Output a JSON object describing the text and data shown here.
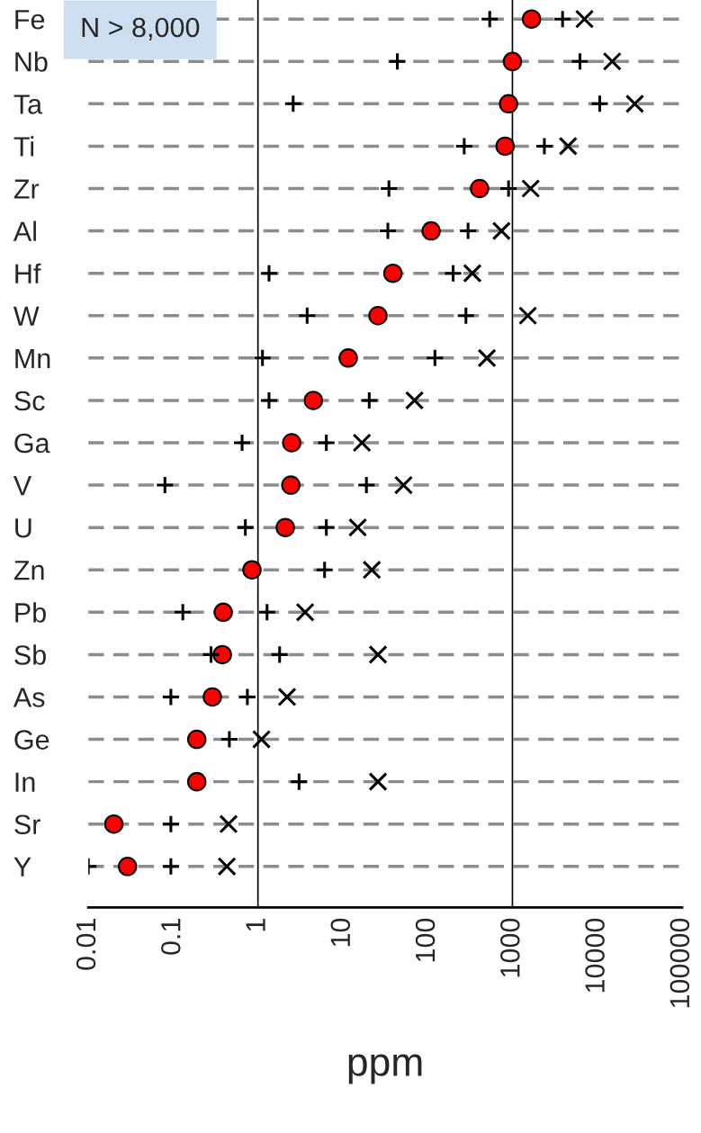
{
  "chart_data": {
    "type": "scatter",
    "orientation": "horizontal",
    "log": "x",
    "xlabel": "ppm",
    "categories": [
      "Fe",
      "Nb",
      "Ta",
      "Ti",
      "Zr",
      "Al",
      "Hf",
      "W",
      "Mn",
      "Sc",
      "Ga",
      "V",
      "U",
      "Zn",
      "Pb",
      "Sb",
      "As",
      "Ge",
      "In",
      "Sr",
      "Y"
    ],
    "series": [
      {
        "color": "#000000",
        "marker": "plus",
        "values": [
          540,
          44,
          2.6,
          270,
          35,
          34,
          1.35,
          3.8,
          1.13,
          1.35,
          0.65,
          0.08,
          0.71,
          null,
          0.13,
          0.28,
          0.094,
          null,
          null,
          null,
          0.01
        ]
      },
      {
        "color": "#ff0000",
        "marker": "circle",
        "values": [
          1680,
          1000,
          900,
          820,
          410,
          110,
          39,
          26,
          11.6,
          4.5,
          2.5,
          2.44,
          2.1,
          0.85,
          0.39,
          0.38,
          0.29,
          0.19,
          0.19,
          0.02,
          0.029
        ]
      },
      {
        "color": "#000000",
        "marker": "plus",
        "values": [
          3900,
          6250,
          10700,
          2380,
          900,
          300,
          200,
          283,
          122,
          20.5,
          6.4,
          19,
          6.4,
          6.1,
          1.28,
          1.8,
          0.75,
          0.46,
          3.05,
          0.094,
          0.094
        ]
      },
      {
        "color": "#000000",
        "marker": "cross",
        "values": [
          7070,
          15000,
          27700,
          4530,
          1640,
          743,
          337,
          1520,
          500,
          70,
          16.8,
          52,
          15,
          22,
          3.6,
          26,
          2.2,
          1.1,
          26,
          0.45,
          0.43
        ]
      }
    ],
    "xlim": [
      0.01,
      100000
    ],
    "xticks": [
      0.01,
      0.1,
      1,
      10,
      100,
      1000,
      10000,
      100000
    ],
    "grid": "y",
    "line_style": "dashed",
    "ref_lines": [
      {
        "axis": "x",
        "value": 1,
        "color": "#000000"
      },
      {
        "axis": "x",
        "value": 1000,
        "color": "#000000"
      }
    ],
    "annotations": [
      "N > 8,000"
    ]
  }
}
